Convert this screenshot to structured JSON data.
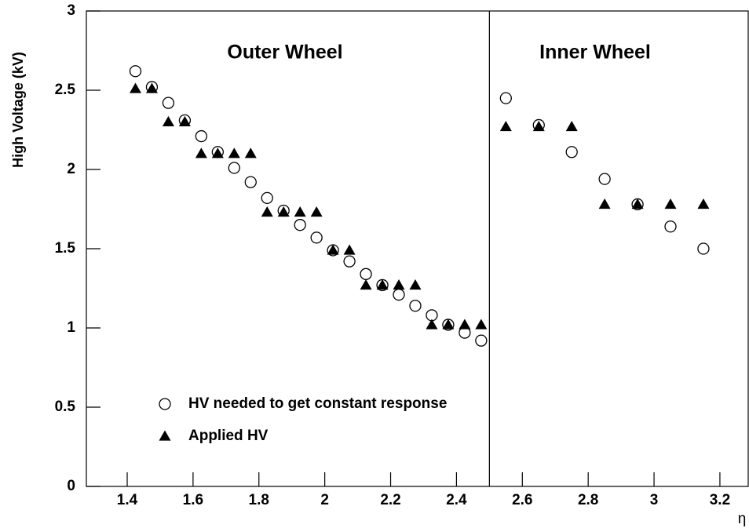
{
  "chart_data": {
    "type": "scatter",
    "ylabel": "High Voltage (kV)",
    "xlabel": "η",
    "annotations": [
      "Outer Wheel",
      "Inner Wheel"
    ],
    "vlines": [
      2.5
    ],
    "x": [
      1.425,
      1.475,
      1.525,
      1.575,
      1.625,
      1.675,
      1.725,
      1.775,
      1.825,
      1.875,
      1.925,
      1.975,
      2.025,
      2.075,
      2.125,
      2.175,
      2.225,
      2.275,
      2.325,
      2.375,
      2.425,
      2.475,
      2.55,
      2.65,
      2.75,
      2.85,
      2.95,
      3.05,
      3.15
    ],
    "series": [
      {
        "name": "HV needed to get constant response",
        "color": "#000000",
        "marker": "open-circle",
        "values": [
          2.62,
          2.52,
          2.42,
          2.31,
          2.21,
          2.11,
          2.01,
          1.92,
          1.82,
          1.74,
          1.65,
          1.57,
          1.49,
          1.42,
          1.34,
          1.27,
          1.21,
          1.14,
          1.08,
          1.02,
          0.97,
          0.92,
          2.45,
          2.28,
          2.11,
          1.94,
          1.78,
          1.64,
          1.5
        ]
      },
      {
        "name": "Applied HV",
        "color": "#000000",
        "marker": "filled-triangle",
        "values": [
          2.51,
          2.51,
          2.3,
          2.3,
          2.1,
          2.1,
          2.1,
          2.1,
          1.73,
          1.73,
          1.73,
          1.73,
          1.49,
          1.49,
          1.27,
          1.27,
          1.27,
          1.27,
          1.02,
          1.02,
          1.02,
          1.02,
          2.27,
          2.27,
          2.27,
          1.78,
          1.78,
          1.78,
          1.78
        ]
      }
    ],
    "xlim": [
      1.276,
      3.286
    ],
    "ylim": [
      0,
      3
    ],
    "xticks": [
      1.4,
      1.6,
      1.8,
      2,
      2.2,
      2.4,
      2.6,
      2.8,
      3,
      3.2
    ],
    "yticks": [
      0,
      0.5,
      1,
      1.5,
      2,
      2.5,
      3
    ],
    "grid": false
  }
}
